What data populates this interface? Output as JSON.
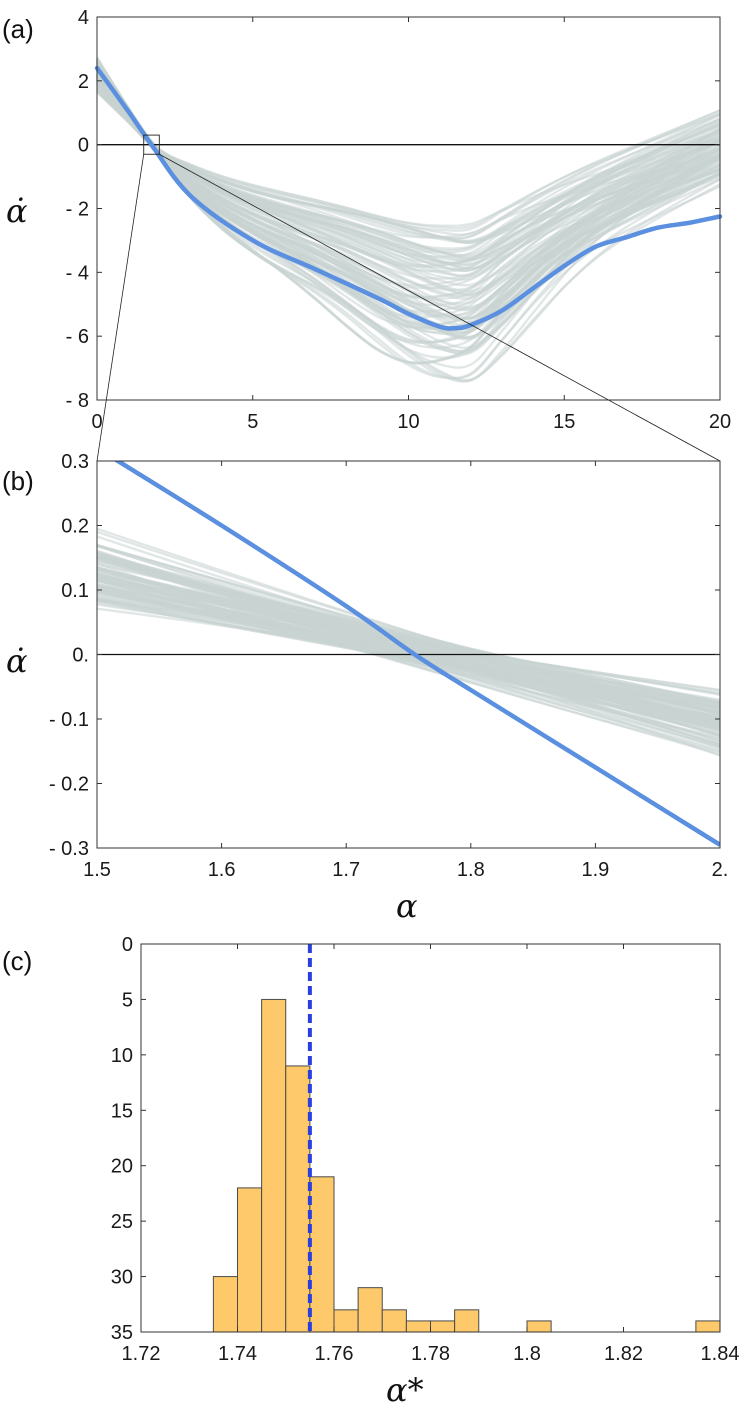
{
  "colors": {
    "highlight": "#5b8fdf",
    "ensemble": "#c9d3d1",
    "zero_line": "#111111",
    "bar_fill": "#fdc96b",
    "bar_edge": "#4a4a4a",
    "mean_line": "#2a3fe0"
  },
  "chart_data": [
    {
      "id": "a",
      "type": "line",
      "panel_label": "(a)",
      "xlabel": "",
      "ylabel": "α̇",
      "xlim": [
        0,
        20
      ],
      "ylim": [
        -8,
        4
      ],
      "xticks": [
        "0",
        "5",
        "10",
        "15",
        "20"
      ],
      "yticks": [
        "4",
        "2",
        "0",
        "- 2",
        "- 4",
        "- 6",
        "- 8"
      ],
      "zero_line": 0,
      "ensemble_count": 100,
      "highlight_series": {
        "name": "highlighted",
        "x": [
          0,
          1,
          1.75,
          3,
          5,
          7,
          9,
          10,
          11,
          11.5,
          12,
          13,
          14,
          15,
          16,
          17,
          18,
          19,
          20
        ],
        "y": [
          2.4,
          1.05,
          0,
          -1.6,
          -3.0,
          -3.9,
          -4.8,
          -5.3,
          -5.7,
          -5.75,
          -5.65,
          -5.2,
          -4.5,
          -3.8,
          -3.2,
          -2.9,
          -2.6,
          -2.45,
          -2.25
        ]
      },
      "inset_box": {
        "x": [
          1.5,
          2.0
        ],
        "y": [
          -0.3,
          0.3
        ]
      },
      "zoom_target": "b"
    },
    {
      "id": "b",
      "type": "line",
      "panel_label": "(b)",
      "xlabel": "α",
      "ylabel": "α̇",
      "xlim": [
        1.5,
        2.0
      ],
      "ylim": [
        -0.3,
        0.3
      ],
      "xticks": [
        "1.5",
        "1.6",
        "1.7",
        "1.8",
        "1.9",
        "2."
      ],
      "yticks": [
        "0.3",
        "0.2",
        "0.1",
        "0.",
        "- 0.1",
        "- 0.2",
        "- 0.3"
      ],
      "zero_line": 0,
      "ensemble_count": 100,
      "highlight_series": {
        "name": "highlighted",
        "x": [
          1.5,
          1.6,
          1.7,
          1.755,
          1.8,
          1.9,
          2.0
        ],
        "y": [
          0.32,
          0.2,
          0.075,
          0.0,
          -0.055,
          -0.175,
          -0.295
        ]
      }
    },
    {
      "id": "c",
      "type": "bar",
      "panel_label": "(c)",
      "xlabel": "α*",
      "ylabel": "",
      "xlim": [
        1.72,
        1.84
      ],
      "ylim": [
        0,
        35
      ],
      "xticks": [
        "1.72",
        "1.74",
        "1.76",
        "1.78",
        "1.8",
        "1.82",
        "1.84"
      ],
      "yticks": [
        "0",
        "5",
        "10",
        "15",
        "20",
        "25",
        "30",
        "35"
      ],
      "bin_width": 0.005,
      "bin_starts": [
        1.735,
        1.74,
        1.745,
        1.75,
        1.755,
        1.76,
        1.765,
        1.77,
        1.775,
        1.78,
        1.785,
        1.8,
        1.835
      ],
      "counts": [
        5,
        13,
        30,
        24,
        14,
        2,
        4,
        2,
        1,
        1,
        2,
        1,
        1
      ],
      "mean_line_x": 1.755
    }
  ]
}
